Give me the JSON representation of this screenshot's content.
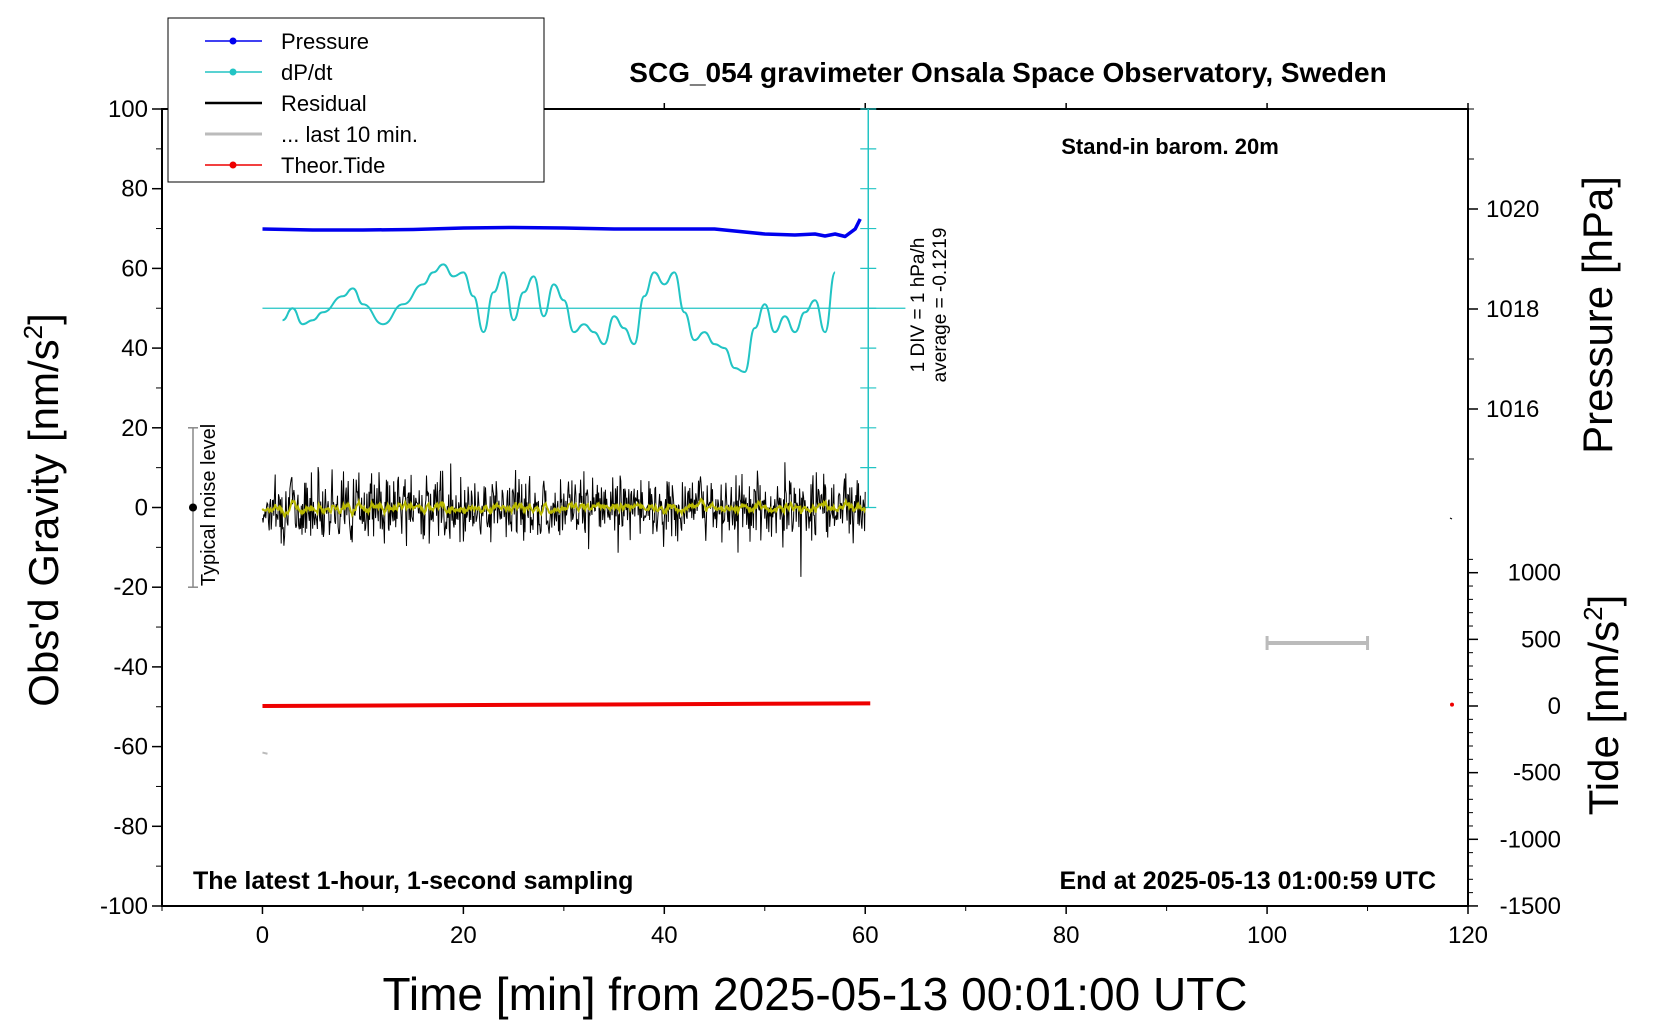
{
  "chart_data": {
    "type": "line",
    "title": "SCG_054 gravimeter Onsala Space Observatory, Sweden",
    "xlabel": "Time [min] from 2025-05-13 00:01:00 UTC",
    "ylabel_left": "Obs'd Gravity [nm/s",
    "ylabel_left_sup": "2",
    "ylabel_left_tail": "]",
    "ylabel_pressure": "Pressure [hPa]",
    "ylabel_tide": "Tide [nm/s",
    "ylabel_tide_sup": "2",
    "ylabel_tide_tail": "]",
    "xlim": [
      -10,
      120
    ],
    "ylim": [
      -100,
      100
    ],
    "pressure_lim": [
      1014.3,
      1022.3
    ],
    "tide_lim": [
      -1500,
      1500
    ],
    "x_ticks": [
      "0",
      "20",
      "40",
      "60",
      "80",
      "100",
      "120"
    ],
    "y_ticks": [
      "100",
      "80",
      "60",
      "40",
      "20",
      "0",
      "-20",
      "-40",
      "-60",
      "-80",
      "-100"
    ],
    "pressure_ticks": [
      "1020",
      "1018",
      "1016"
    ],
    "tide_ticks": [
      "1000",
      "500",
      "0",
      "-500",
      "-1000",
      "-1500"
    ],
    "annotations": {
      "station": "Stand-in barom. 20m",
      "bottom_left": "The latest 1-hour, 1-second sampling",
      "bottom_right": "End at 2025-05-13 01:00:59 UTC",
      "dpdt_scale": "1 DIV = 1 hPa/h",
      "dpdt_average": "average = -0.1219",
      "noise": "Typical noise level"
    },
    "legend": {
      "placement": "top-left",
      "entries": [
        "Pressure",
        "dP/dt",
        "Residual",
        "... last 10 min.",
        "Theor.Tide"
      ]
    },
    "colors": {
      "pressure": "#0000ee",
      "dpdt": "#22c4c4",
      "residual": "#000000",
      "last10": "#bbbbbb",
      "tide": "#ee0000",
      "smooth": "#b8b800"
    },
    "series": {
      "pressure": {
        "x": [
          0,
          5,
          10,
          15,
          20,
          25,
          30,
          35,
          40,
          45,
          50,
          53,
          55,
          56,
          57,
          58,
          59,
          59.5
        ],
        "values": [
          1019.6,
          1019.58,
          1019.58,
          1019.59,
          1019.62,
          1019.63,
          1019.62,
          1019.6,
          1019.6,
          1019.6,
          1019.5,
          1019.48,
          1019.5,
          1019.46,
          1019.5,
          1019.45,
          1019.6,
          1019.8
        ]
      },
      "dpdt": {
        "x": [
          2,
          3,
          4,
          5,
          6,
          8,
          9,
          10,
          12,
          14,
          16,
          17,
          18,
          19,
          20,
          21,
          22,
          23,
          24,
          25,
          26,
          27,
          28,
          29,
          30,
          31,
          32,
          33,
          34,
          35,
          36,
          37,
          38,
          39,
          40,
          41,
          42,
          43,
          44,
          45,
          46,
          47,
          48,
          49,
          50,
          51,
          52,
          53,
          54,
          55,
          56,
          57
        ],
        "values": [
          -0.3,
          0,
          -0.4,
          -0.3,
          -0.1,
          0.3,
          0.5,
          0.1,
          -0.4,
          0.1,
          0.6,
          0.9,
          1.1,
          0.8,
          0.9,
          0.3,
          -0.6,
          0.4,
          0.9,
          -0.3,
          0.4,
          0.8,
          -0.2,
          0.6,
          0.2,
          -0.6,
          -0.4,
          -0.6,
          -0.9,
          -0.2,
          -0.5,
          -0.9,
          0.3,
          0.9,
          0.6,
          0.9,
          -0.1,
          -0.8,
          -0.6,
          -0.9,
          -1.0,
          -1.5,
          -1.6,
          -0.5,
          0.1,
          -0.6,
          -0.2,
          -0.6,
          -0.1,
          0.2,
          -0.6,
          0.9
        ]
      },
      "residual": {
        "x_start": 0,
        "x_end": 60,
        "center": 0,
        "spread": 4
      },
      "tide": {
        "x": [
          0,
          60.5
        ],
        "values": [
          0,
          20
        ]
      }
    }
  }
}
